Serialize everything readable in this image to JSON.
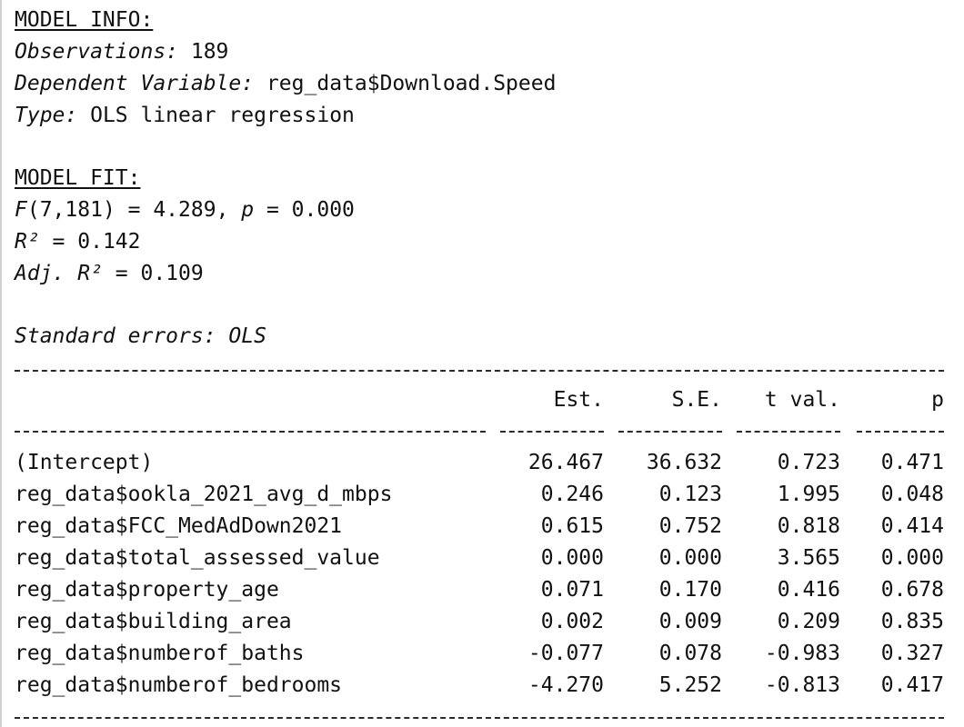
{
  "model_info": {
    "heading": "MODEL INFO:",
    "observations_label": "Observations:",
    "observations_value": " 189",
    "dependent_label": "Dependent Variable:",
    "dependent_value": " reg_data$Download.Speed",
    "type_label": "Type:",
    "type_value": " OLS linear regression"
  },
  "model_fit": {
    "heading": "MODEL FIT:",
    "f_label": "F",
    "f_value": "(7,181) = 4.289, ",
    "p_label": "p",
    "p_value": " = 0.000",
    "r2_label": "R²",
    "r2_value": " = 0.142",
    "adj_r2_label": "Adj. R²",
    "adj_r2_value": " = 0.109"
  },
  "standard_errors": "Standard errors: OLS",
  "table": {
    "headers": [
      "Est.",
      "S.E.",
      "t val.",
      "p"
    ],
    "rows": [
      {
        "term": "(Intercept)",
        "est": "26.467",
        "se": "36.632",
        "t": "0.723",
        "p": "0.471"
      },
      {
        "term": "reg_data$ookla_2021_avg_d_mbps",
        "est": "0.246",
        "se": "0.123",
        "t": "1.995",
        "p": "0.048"
      },
      {
        "term": "reg_data$FCC_MedAdDown2021",
        "est": "0.615",
        "se": "0.752",
        "t": "0.818",
        "p": "0.414"
      },
      {
        "term": "reg_data$total_assessed_value",
        "est": "0.000",
        "se": "0.000",
        "t": "3.565",
        "p": "0.000"
      },
      {
        "term": "reg_data$property_age",
        "est": "0.071",
        "se": "0.170",
        "t": "0.416",
        "p": "0.678"
      },
      {
        "term": "reg_data$building_area",
        "est": "0.002",
        "se": "0.009",
        "t": "0.209",
        "p": "0.835"
      },
      {
        "term": "reg_data$numberof_baths",
        "est": "-0.077",
        "se": "0.078",
        "t": "-0.983",
        "p": "0.327"
      },
      {
        "term": "reg_data$numberof_bedrooms",
        "est": "-4.270",
        "se": "5.252",
        "t": "-0.813",
        "p": "0.417"
      }
    ]
  }
}
